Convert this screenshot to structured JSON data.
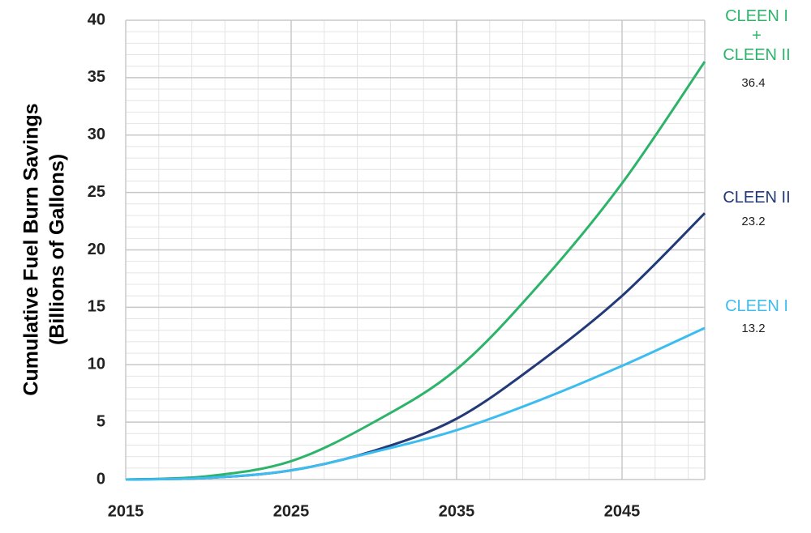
{
  "chart_data": {
    "type": "line",
    "y_label": [
      "Cumulative Fuel Burn Savings",
      "(Billions of Gallons)"
    ],
    "x": [
      2015,
      2020,
      2025,
      2030,
      2035,
      2040,
      2045,
      2050
    ],
    "series": [
      {
        "name": "CLEEN I\n+\nCLEEN II",
        "color": "#2db46a",
        "values": [
          0,
          0.3,
          1.6,
          5.0,
          9.6,
          17.0,
          25.8,
          36.4
        ]
      },
      {
        "name": "CLEEN II",
        "color": "#233a78",
        "values": [
          0,
          0.15,
          0.8,
          2.5,
          5.3,
          10.2,
          16.0,
          23.2
        ]
      },
      {
        "name": "CLEEN I",
        "color": "#3dbcf0",
        "values": [
          0,
          0.15,
          0.8,
          2.4,
          4.3,
          6.9,
          9.9,
          13.2
        ]
      }
    ],
    "xlim": [
      2015,
      2050
    ],
    "xticks": [
      2015,
      2025,
      2035,
      2045
    ],
    "ylim": [
      0,
      40
    ],
    "yticks": [
      0,
      5,
      10,
      15,
      20,
      25,
      30,
      35,
      40
    ],
    "grid": true,
    "minor_grid_step": [
      2,
      1
    ]
  }
}
